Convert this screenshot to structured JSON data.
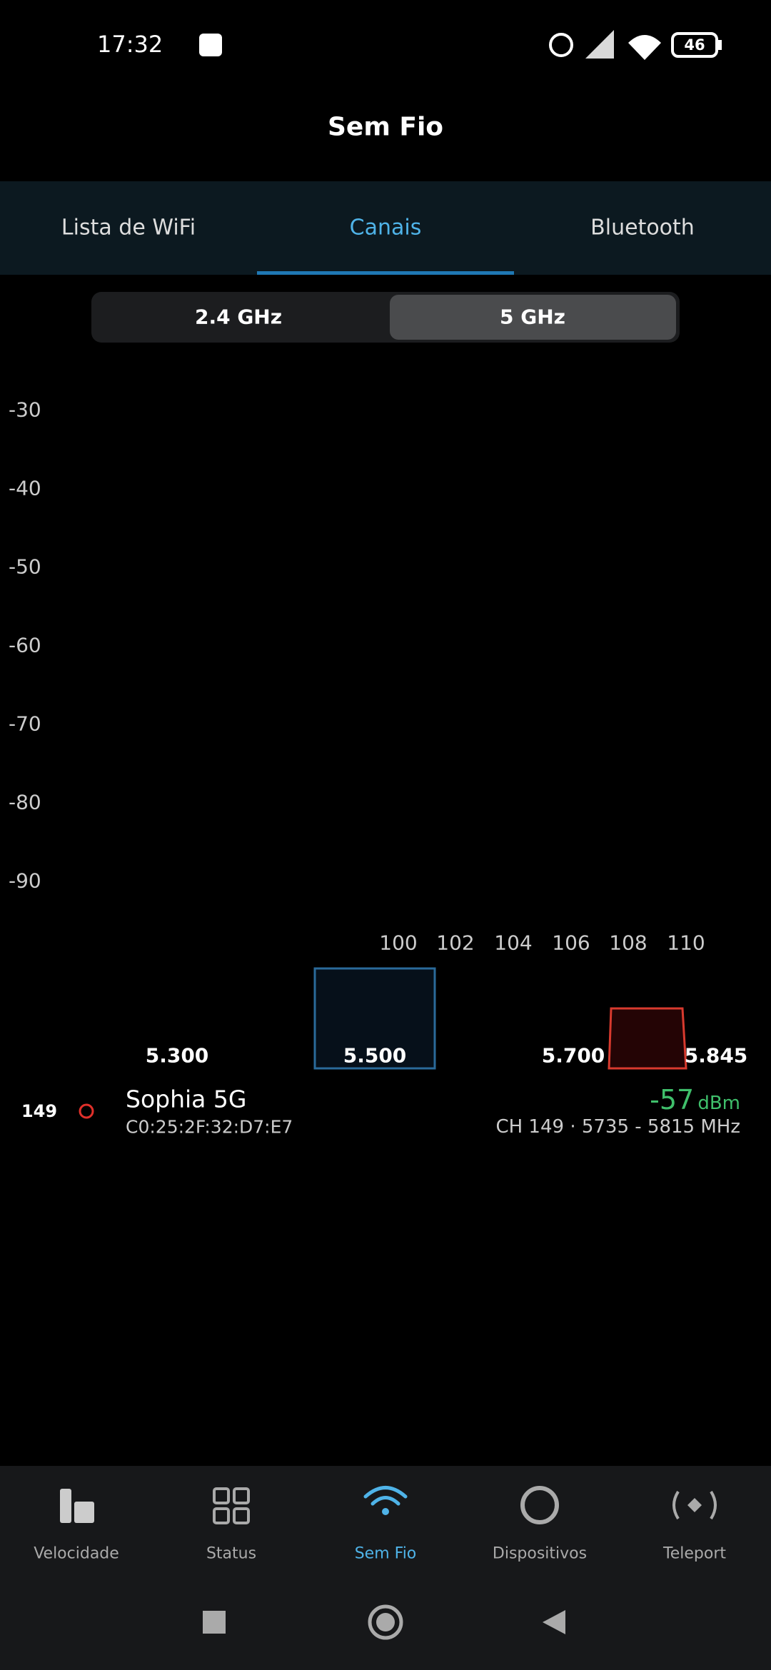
{
  "status_bar": {
    "time": "17:32",
    "battery": "46"
  },
  "header": {
    "title": "Sem Fio"
  },
  "tabs": [
    "Lista de WiFi",
    "Canais",
    "Bluetooth"
  ],
  "band_toggle": [
    "2.4 GHz",
    "5 GHz"
  ],
  "chart": {
    "y_labels": [
      "-30",
      "-40",
      "-50",
      "-60",
      "-70",
      "-80",
      "-90"
    ],
    "channel_labels": [
      "100",
      "102",
      "104",
      "106",
      "108",
      "110"
    ],
    "freq_labels": [
      "5.300",
      "5.500",
      "5.700",
      "5.845"
    ]
  },
  "networks": [
    {
      "channel": "149",
      "ssid": "Sophia 5G",
      "mac": "C0:25:2F:32:D7:E7",
      "signal": "-57",
      "unit": "dBm",
      "detail": "CH 149 · 5735 - 5815 MHz"
    }
  ],
  "nav": [
    "Velocidade",
    "Status",
    "Sem Fio",
    "Dispositivos",
    "Teleport"
  ]
}
